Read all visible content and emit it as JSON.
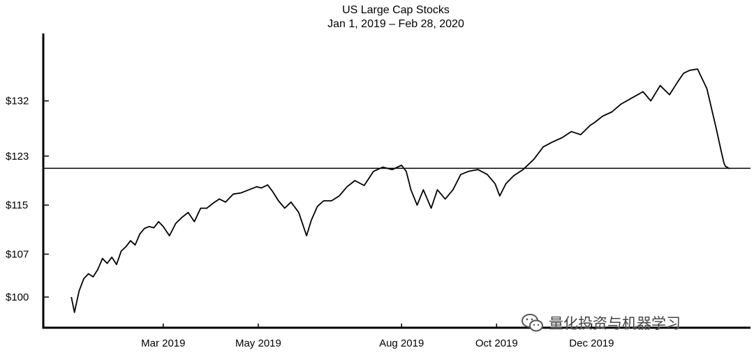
{
  "chart_data": {
    "type": "line",
    "title": "US Large Cap Stocks",
    "subtitle": "Jan 1, 2019 – Feb 28, 2020",
    "xlabel": "",
    "ylabel": "",
    "x_tick_labels": [
      "Mar 2019",
      "May 2019",
      "Aug 2019",
      "Oct 2019",
      "Dec 2019"
    ],
    "x_tick_dates": [
      "2019-03-01",
      "2019-05-01",
      "2019-08-01",
      "2019-10-01",
      "2019-12-01"
    ],
    "y_tick_labels": [
      "$100",
      "$107",
      "$115",
      "$123",
      "$132"
    ],
    "y_tick_values": [
      100,
      107,
      115,
      123,
      132
    ],
    "xlim": [
      "2018-12-14",
      "2020-03-12"
    ],
    "ylim": [
      95,
      143
    ],
    "reference_line": 121,
    "grid": false,
    "legend": "none",
    "line_color": "#000000",
    "series": [
      {
        "x": [
          "2019-01-01",
          "2019-01-03",
          "2019-01-06",
          "2019-01-09",
          "2019-01-12",
          "2019-01-15",
          "2019-01-18",
          "2019-01-21",
          "2019-01-24",
          "2019-01-27",
          "2019-01-30",
          "2019-02-02",
          "2019-02-05",
          "2019-02-08",
          "2019-02-11",
          "2019-02-14",
          "2019-02-17",
          "2019-02-20",
          "2019-02-23",
          "2019-02-26",
          "2019-03-01",
          "2019-03-05",
          "2019-03-09",
          "2019-03-13",
          "2019-03-17",
          "2019-03-21",
          "2019-03-25",
          "2019-03-29",
          "2019-04-02",
          "2019-04-06",
          "2019-04-10",
          "2019-04-15",
          "2019-04-20",
          "2019-04-25",
          "2019-04-30",
          "2019-05-03",
          "2019-05-07",
          "2019-05-10",
          "2019-05-14",
          "2019-05-18",
          "2019-05-22",
          "2019-05-27",
          "2019-06-01",
          "2019-06-04",
          "2019-06-08",
          "2019-06-12",
          "2019-06-17",
          "2019-06-22",
          "2019-06-27",
          "2019-07-02",
          "2019-07-08",
          "2019-07-14",
          "2019-07-20",
          "2019-07-26",
          "2019-08-01",
          "2019-08-04",
          "2019-08-07",
          "2019-08-11",
          "2019-08-15",
          "2019-08-20",
          "2019-08-24",
          "2019-08-29",
          "2019-09-03",
          "2019-09-08",
          "2019-09-13",
          "2019-09-19",
          "2019-09-25",
          "2019-09-30",
          "2019-10-03",
          "2019-10-07",
          "2019-10-12",
          "2019-10-18",
          "2019-10-25",
          "2019-10-31",
          "2019-11-06",
          "2019-11-12",
          "2019-11-18",
          "2019-11-24",
          "2019-11-30",
          "2019-12-03",
          "2019-12-08",
          "2019-12-14",
          "2019-12-20",
          "2019-12-27",
          "2020-01-03",
          "2020-01-08",
          "2020-01-14",
          "2020-01-20",
          "2020-01-25",
          "2020-01-29",
          "2020-02-02",
          "2020-02-07",
          "2020-02-13",
          "2020-02-19",
          "2020-02-22",
          "2020-02-24",
          "2020-02-25",
          "2020-02-26",
          "2020-02-27",
          "2020-02-28"
        ],
        "y": [
          100,
          97.5,
          101,
          103,
          103.8,
          103.3,
          104.5,
          106.3,
          105.5,
          106.5,
          105.3,
          107.5,
          108.2,
          109.2,
          108.5,
          110.3,
          111.2,
          111.5,
          111.3,
          112.3,
          111.5,
          110,
          112,
          113,
          113.8,
          112.3,
          114.5,
          114.5,
          115.3,
          116,
          115.5,
          116.8,
          117,
          117.5,
          118,
          117.8,
          118.3,
          117.3,
          115.7,
          114.5,
          115.5,
          113.8,
          110,
          112.5,
          114.8,
          115.7,
          115.7,
          116.5,
          118,
          119,
          118.2,
          120.5,
          121.2,
          120.8,
          121.5,
          120.5,
          117.5,
          115,
          117.5,
          114.5,
          117.5,
          116,
          117.5,
          120,
          120.5,
          120.8,
          120,
          118.5,
          116.5,
          118.5,
          119.8,
          120.8,
          122.5,
          124.5,
          125.3,
          126,
          127,
          126.5,
          128,
          128.5,
          129.5,
          130.2,
          131.5,
          132.5,
          133.5,
          132,
          134.5,
          133,
          135,
          136.5,
          137,
          137.2,
          134,
          127.5,
          124,
          121.8,
          121.3,
          121.2,
          121,
          121
        ]
      }
    ]
  },
  "watermark": {
    "text": "量化投资与机器学习",
    "icon": "wechat-icon"
  }
}
